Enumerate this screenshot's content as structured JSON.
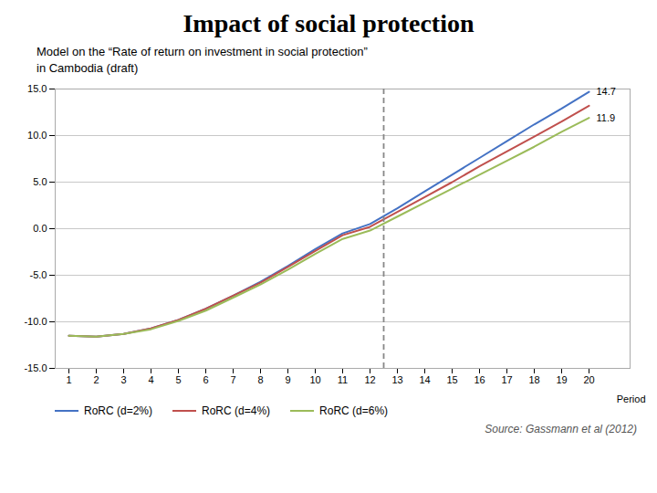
{
  "chart_data": {
    "type": "line",
    "title": "Impact of social protection",
    "subtitle": [
      "Model on the “Rate of return on investment in social protection”",
      "in Cambodia (draft)"
    ],
    "source": "Source: Gassmann et al (2012)",
    "x_label": "Period",
    "x": [
      1,
      2,
      3,
      4,
      5,
      6,
      7,
      8,
      9,
      10,
      11,
      12,
      13,
      14,
      15,
      16,
      17,
      18,
      19,
      20
    ],
    "series": [
      {
        "name": "RoRC (d=2%)",
        "color": "#4472C4",
        "values": [
          -11.5,
          -11.6,
          -11.3,
          -10.7,
          -9.8,
          -8.6,
          -7.2,
          -5.7,
          -4.0,
          -2.2,
          -0.5,
          0.5,
          2.2,
          4.0,
          5.8,
          7.6,
          9.4,
          11.2,
          12.9,
          14.7
        ]
      },
      {
        "name": "RoRC (d=4%)",
        "color": "#C0504D",
        "values": [
          -11.5,
          -11.6,
          -11.3,
          -10.7,
          -9.8,
          -8.6,
          -7.2,
          -5.8,
          -4.1,
          -2.4,
          -0.7,
          0.2,
          1.8,
          3.4,
          5.0,
          6.7,
          8.3,
          9.9,
          11.5,
          13.2
        ]
      },
      {
        "name": "RoRC (d=6%)",
        "color": "#9BBB59",
        "values": [
          -11.5,
          -11.6,
          -11.3,
          -10.8,
          -9.9,
          -8.8,
          -7.4,
          -6.0,
          -4.4,
          -2.7,
          -1.1,
          -0.2,
          1.3,
          2.8,
          4.3,
          5.8,
          7.3,
          8.8,
          10.4,
          11.9
        ]
      }
    ],
    "vline_x": 12.5,
    "annotations": [
      {
        "text": "14.7",
        "x": 20,
        "y": 14.7
      },
      {
        "text": "11.9",
        "x": 20,
        "y": 11.9
      }
    ],
    "xlim": [
      0.5,
      21.5
    ],
    "xticks": [
      1,
      2,
      3,
      4,
      5,
      6,
      7,
      8,
      9,
      10,
      11,
      12,
      13,
      14,
      15,
      16,
      17,
      18,
      19,
      20
    ],
    "ylim": [
      -15,
      15
    ],
    "yticks": [
      {
        "value": -15,
        "label": "-15.0"
      },
      {
        "value": -10,
        "label": "-10.0"
      },
      {
        "value": -5,
        "label": "-5.0"
      },
      {
        "value": 0,
        "label": "0.0"
      },
      {
        "value": 5,
        "label": "5.0"
      },
      {
        "value": 10,
        "label": "10.0"
      },
      {
        "value": 15,
        "label": "15.0"
      }
    ],
    "grid": "y",
    "legend": "bottom"
  }
}
